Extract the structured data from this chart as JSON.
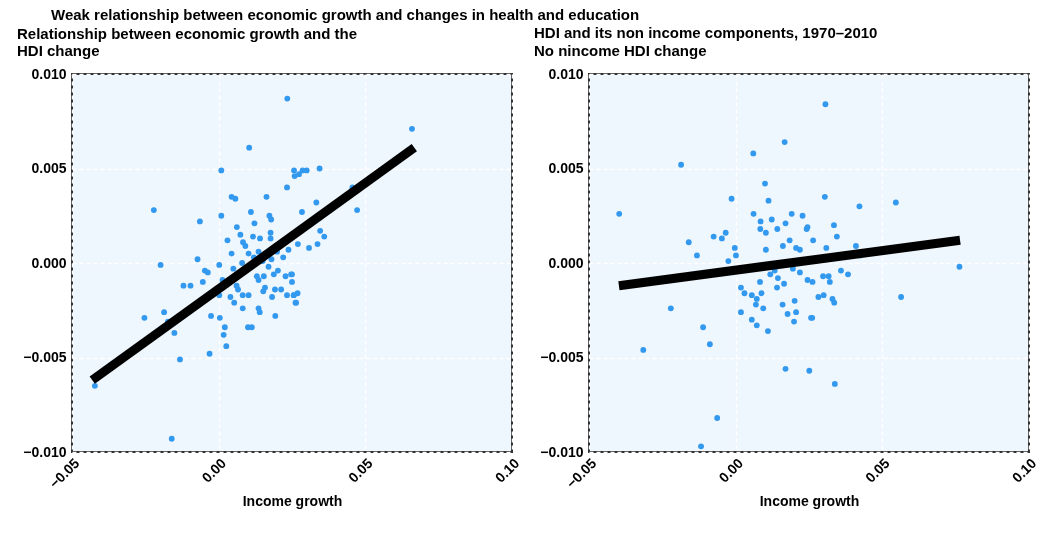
{
  "chart_data": [
    {
      "type": "scatter",
      "title": "Weak relationship between economic growth and changes in health and education",
      "subtitle": "Relationship between economic growth and the HDI change",
      "xlabel": "Income growth",
      "xlim": [
        -0.05,
        0.1
      ],
      "ylim": [
        -0.01,
        0.01
      ],
      "xticks": [
        {
          "value": -0.05,
          "label": "−0.05"
        },
        {
          "value": 0,
          "label": "0.00"
        },
        {
          "value": 0.05,
          "label": "0.05"
        },
        {
          "value": 0.1,
          "label": "0.10"
        }
      ],
      "yticks": [
        {
          "value": -0.01,
          "label": "−0.010"
        },
        {
          "value": -0.005,
          "label": "−0.005"
        },
        {
          "value": 0,
          "label": "0.000"
        },
        {
          "value": 0.005,
          "label": "0.005"
        },
        {
          "value": 0.01,
          "label": "0.010"
        }
      ],
      "grid": true,
      "marker": "circle",
      "series": [
        {
          "color": "#3399ee",
          "x": [
            0.0234,
            0.0104,
            0.0009,
            -0.0221,
            -0.0064,
            0.0009,
            0.0044,
            0.0057,
            0.0163,
            0.011,
            0.0173,
            0.0179,
            0.0122,
            0.0062,
            0.0074,
            0.0117,
            0.0177,
            0.0177,
            0.003,
            0.0083,
            0.0091,
            0.0141,
            -0.0072,
            -0.0198,
            0.0044,
            0.0102,
            0.0136,
            0.0199,
            0.0238,
            0.027,
            0.0257,
            0.0259,
            0.0274,
            0.0233,
            0.0286,
            0.03,
            0.0344,
            0.0659,
            0.0456,
            0.0333,
            0.0284,
            0.0472,
            0.0346,
            0.036,
            0.0308,
            0.0337,
            0.025,
            0.025,
            0.0256,
            0.0269,
            0.0262,
            0.0002,
            -0.0047,
            -0.0037,
            -0.0054,
            -0.012,
            -0.0096,
            0.0013,
            0.0061,
            0.0066,
            0.0002,
            0.004,
            0.0082,
            0.0102,
            0.0053,
            0.0082,
            0.0136,
            0.014,
            0.0193,
            -0.0253,
            -0.0186,
            -0.0173,
            -0.0151,
            -0.0026,
            0.0004,
            0.0021,
            0.0017,
            0.0026,
            0.01,
            0.0113,
            -0.0132,
            -0.0031,
            -0.0422,
            -0.016,
            0.013,
            0.0154,
            0.0136,
            0.0158,
            0.0152,
            0.0188,
            0.0202,
            0.0228,
            0.0247,
            0.0192,
            0.0213,
            0.0233,
            0.0256,
            0.0264,
            0.0182,
            0.012,
            0.015,
            0.018,
            0.008,
            0.022,
            0.005,
            0.017
          ],
          "values": [
            0.0087,
            0.0061,
            0.0049,
            0.0028,
            0.0022,
            0.0025,
            0.0035,
            0.0034,
            0.0035,
            0.0027,
            0.0025,
            0.0023,
            0.0021,
            0.0019,
            0.0015,
            0.0014,
            0.0016,
            0.0013,
            0.0012,
            0.0011,
            0.0009,
            0.0013,
            0.0002,
            -0.0001,
            0.0005,
            0.0005,
            0.0006,
            0.0006,
            0.0007,
            0.001,
            0.0049,
            0.0046,
            0.0047,
            0.004,
            0.0049,
            0.0049,
            0.005,
            0.0071,
            0.004,
            0.0032,
            0.0027,
            0.0028,
            0.0017,
            0.0014,
            0.0008,
            0.001,
            -0.0006,
            -0.001,
            -0.0017,
            -0.0016,
            -0.0021,
            -0.0001,
            -0.0004,
            -0.0005,
            -0.001,
            -0.0012,
            -0.0012,
            -0.0009,
            -0.0012,
            -0.0014,
            -0.0017,
            -0.0018,
            -0.0017,
            -0.0017,
            -0.0021,
            -0.0024,
            -0.0024,
            -0.0026,
            -0.0028,
            -0.0029,
            -0.0026,
            -0.0031,
            -0.0037,
            -0.0028,
            -0.0029,
            -0.0034,
            -0.0038,
            -0.0044,
            -0.0034,
            -0.0034,
            -0.0051,
            -0.0048,
            -0.0065,
            -0.0093,
            -0.0007,
            -0.0007,
            -0.0009,
            -0.0013,
            -0.0015,
            -0.0006,
            -0.0004,
            -0.0007,
            -0.0006,
            -0.0014,
            -0.0014,
            -0.0017,
            -0.0017,
            -0.0021,
            -0.0018,
            0.0003,
            0.0001,
            0.0002,
            0,
            0.0003,
            -0.0003,
            -0.0002
          ]
        },
        {
          "type": "line",
          "color": "#000000",
          "line_style": "solid",
          "marker": "none",
          "x": [
            -0.0431,
            0.0667
          ],
          "values": [
            -0.0062,
            0.0061
          ]
        }
      ]
    },
    {
      "type": "scatter",
      "title": "HDI and its non income components, 1970–2010",
      "subtitle": "No nincome HDI change",
      "xlabel": "Income growth",
      "xlim": [
        -0.05,
        0.1
      ],
      "ylim": [
        -0.01,
        0.01
      ],
      "xticks": [
        {
          "value": -0.05,
          "label": "−0.05"
        },
        {
          "value": 0,
          "label": "0.00"
        },
        {
          "value": 0.05,
          "label": "0.05"
        },
        {
          "value": 0.1,
          "label": "0.10"
        }
      ],
      "yticks": [
        {
          "value": -0.01,
          "label": "−0.010"
        },
        {
          "value": -0.005,
          "label": "−0.005"
        },
        {
          "value": 0,
          "label": "0.000"
        },
        {
          "value": 0.005,
          "label": "0.005"
        },
        {
          "value": 0.01,
          "label": "0.010"
        }
      ],
      "grid": true,
      "marker": "circle",
      "series": [
        {
          "color": "#3399ee",
          "x": [
            0.0167,
            0.006,
            -0.0186,
            -0.0397,
            0.01,
            -0.0014,
            0.0112,
            0.0061,
            0.0085,
            0.0123,
            0.0084,
            0.0103,
            0.0142,
            0.017,
            0.0191,
            0.0228,
            -0.0075,
            -0.0047,
            -0.0034,
            -0.016,
            -0.0132,
            -0.0003,
            0.0001,
            -0.0025,
            0.0103,
            0.0161,
            0.0184,
            0.0206,
            0.0219,
            0.0133,
            0.0144,
            0.0118,
            0.0165,
            0.0141,
            0.0083,
            0.0195,
            0.0219,
            0.0018,
            0.003,
            0.0055,
            0.0072,
            0.0088,
            0.0069,
            0.0018,
            0.0055,
            0.0072,
            0.0094,
            0.011,
            0.016,
            0.0177,
            0.0201,
            0.0206,
            0.0199,
            0.0257,
            -0.0221,
            -0.0111,
            -0.0088,
            -0.0315,
            0.017,
            0.0251,
            -0.0063,
            -0.0118,
            0.0306,
            0.0304,
            0.0422,
            0.0546,
            0.0335,
            0.0345,
            0.0242,
            0.0245,
            0.0264,
            0.0309,
            0.041,
            0.0424,
            0.0763,
            0.0359,
            0.0383,
            0.0298,
            0.0317,
            0.0321,
            0.0245,
            0.0262,
            0.0282,
            0.03,
            0.033,
            0.0336,
            0.0261,
            0.0564,
            0.0338
          ],
          "values": [
            0.0064,
            0.0058,
            0.0052,
            0.0026,
            0.0042,
            0.0034,
            0.0033,
            0.0026,
            0.0022,
            0.0023,
            0.0018,
            0.0016,
            0.0018,
            0.0021,
            0.0026,
            0.0025,
            0.0014,
            0.0013,
            0.0016,
            0.0011,
            0.0004,
            0.0008,
            0.0004,
            0.0001,
            0.0007,
            0.0009,
            0.0012,
            0.0008,
            0.0007,
            -0.0004,
            -0.0008,
            -0.0006,
            -0.0011,
            -0.0013,
            -0.001,
            -0.0003,
            -0.0005,
            -0.0013,
            -0.0016,
            -0.0017,
            -0.0019,
            -0.0016,
            -0.0022,
            -0.0026,
            -0.003,
            -0.0033,
            -0.0024,
            -0.0036,
            -0.0022,
            -0.0027,
            -0.002,
            -0.0026,
            -0.0031,
            -0.0029,
            -0.0024,
            -0.0034,
            -0.0043,
            -0.0046,
            -0.0056,
            -0.0057,
            -0.0082,
            -0.0097,
            0.0084,
            0.0035,
            0.003,
            0.0032,
            0.002,
            0.0014,
            0.0018,
            0.0019,
            0.0012,
            0.0008,
            0.0009,
            0.0004,
            -0.0002,
            -0.0004,
            -0.0006,
            -0.0007,
            -0.0007,
            -0.001,
            -0.0009,
            -0.001,
            -0.0018,
            -0.0017,
            -0.0019,
            -0.0021,
            -0.0029,
            -0.0018,
            -0.0064
          ]
        },
        {
          "type": "line",
          "color": "#000000",
          "line_style": "solid",
          "marker": "none",
          "x": [
            -0.0398,
            0.0765
          ],
          "values": [
            -0.0012,
            0.0012
          ]
        }
      ]
    }
  ]
}
